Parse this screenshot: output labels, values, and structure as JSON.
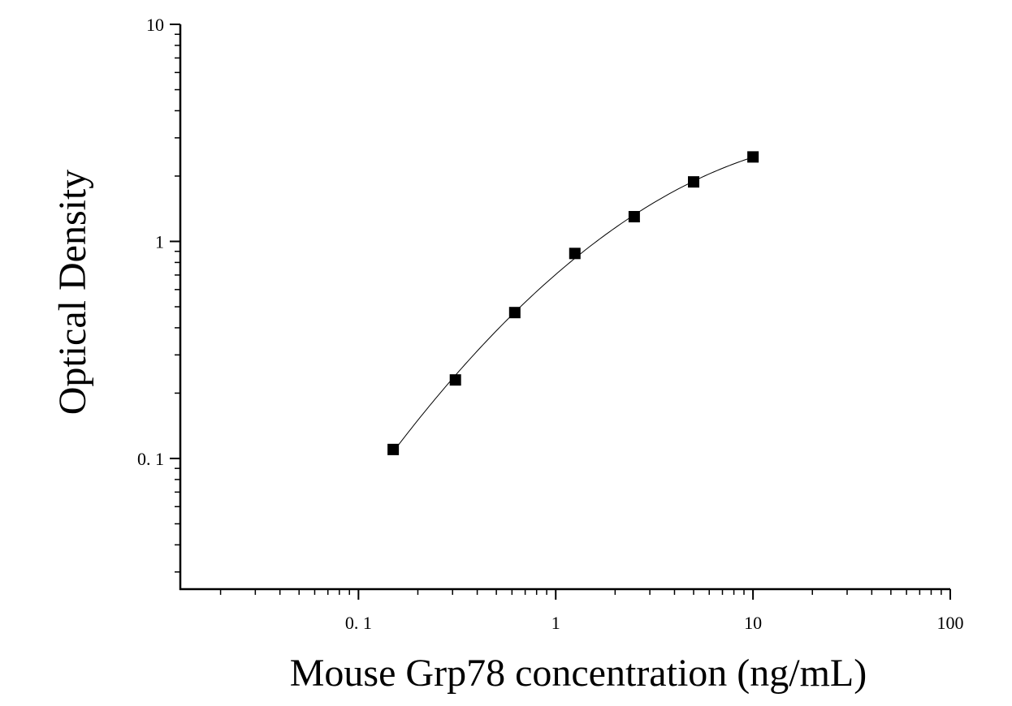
{
  "chart_data": {
    "type": "scatter",
    "xlabel": "Mouse Grp78 concentration (ng/mL)",
    "ylabel": "Optical Density",
    "x_scale": "log",
    "y_scale": "log",
    "xlim": [
      0.0125,
      100
    ],
    "ylim": [
      0.025,
      10
    ],
    "x_ticks": [
      {
        "value": 0.1,
        "label": "0. 1"
      },
      {
        "value": 1,
        "label": "1"
      },
      {
        "value": 10,
        "label": "10"
      },
      {
        "value": 100,
        "label": "100"
      }
    ],
    "y_ticks": [
      {
        "value": 0.1,
        "label": "0. 1"
      },
      {
        "value": 1,
        "label": "1"
      },
      {
        "value": 10,
        "label": "10"
      }
    ],
    "grid": false,
    "series": [
      {
        "marker": "square",
        "color": "#000000",
        "x": [
          0.15,
          0.31,
          0.62,
          1.25,
          2.5,
          5,
          10
        ],
        "y": [
          0.11,
          0.23,
          0.47,
          0.88,
          1.3,
          1.88,
          2.45
        ]
      }
    ],
    "fit_curve": {
      "color": "#000000",
      "x_range": [
        0.15,
        10
      ]
    }
  }
}
